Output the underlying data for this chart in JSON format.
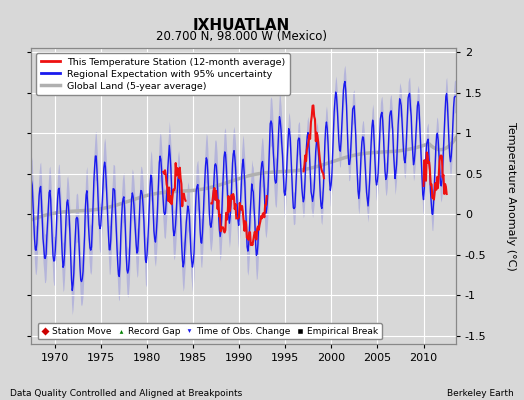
{
  "title": "IXHUATLAN",
  "subtitle": "20.700 N, 98.000 W (Mexico)",
  "ylabel": "Temperature Anomaly (°C)",
  "xlabel_bottom_left": "Data Quality Controlled and Aligned at Breakpoints",
  "xlabel_bottom_right": "Berkeley Earth",
  "ylim": [
    -1.6,
    2.05
  ],
  "xlim": [
    1967.5,
    2013.5
  ],
  "yticks": [
    -1.5,
    -1.0,
    -0.5,
    0.0,
    0.5,
    1.0,
    1.5,
    2.0
  ],
  "xticks": [
    1970,
    1975,
    1980,
    1985,
    1990,
    1995,
    2000,
    2005,
    2010
  ],
  "bg_color": "#d8d8d8",
  "plot_bg_color": "#d8d8d8",
  "grid_color": "white",
  "regional_color": "#1a1aee",
  "regional_fill_color": "#9999dd",
  "global_color": "#b0b0b0",
  "station_color": "#ee1111",
  "legend_line_items": [
    {
      "label": "This Temperature Station (12-month average)",
      "color": "#ee1111",
      "lw": 1.5
    },
    {
      "label": "Regional Expectation with 95% uncertainty",
      "color": "#1a1aee",
      "lw": 1.5
    },
    {
      "label": "Global Land (5-year average)",
      "color": "#b0b0b0",
      "lw": 2.5
    }
  ],
  "marker_legend": [
    {
      "label": "Station Move",
      "color": "#cc0000",
      "marker": "D"
    },
    {
      "label": "Record Gap",
      "color": "green",
      "marker": "^"
    },
    {
      "label": "Time of Obs. Change",
      "color": "#1a1aee",
      "marker": "v"
    },
    {
      "label": "Empirical Break",
      "color": "black",
      "marker": "s"
    }
  ]
}
